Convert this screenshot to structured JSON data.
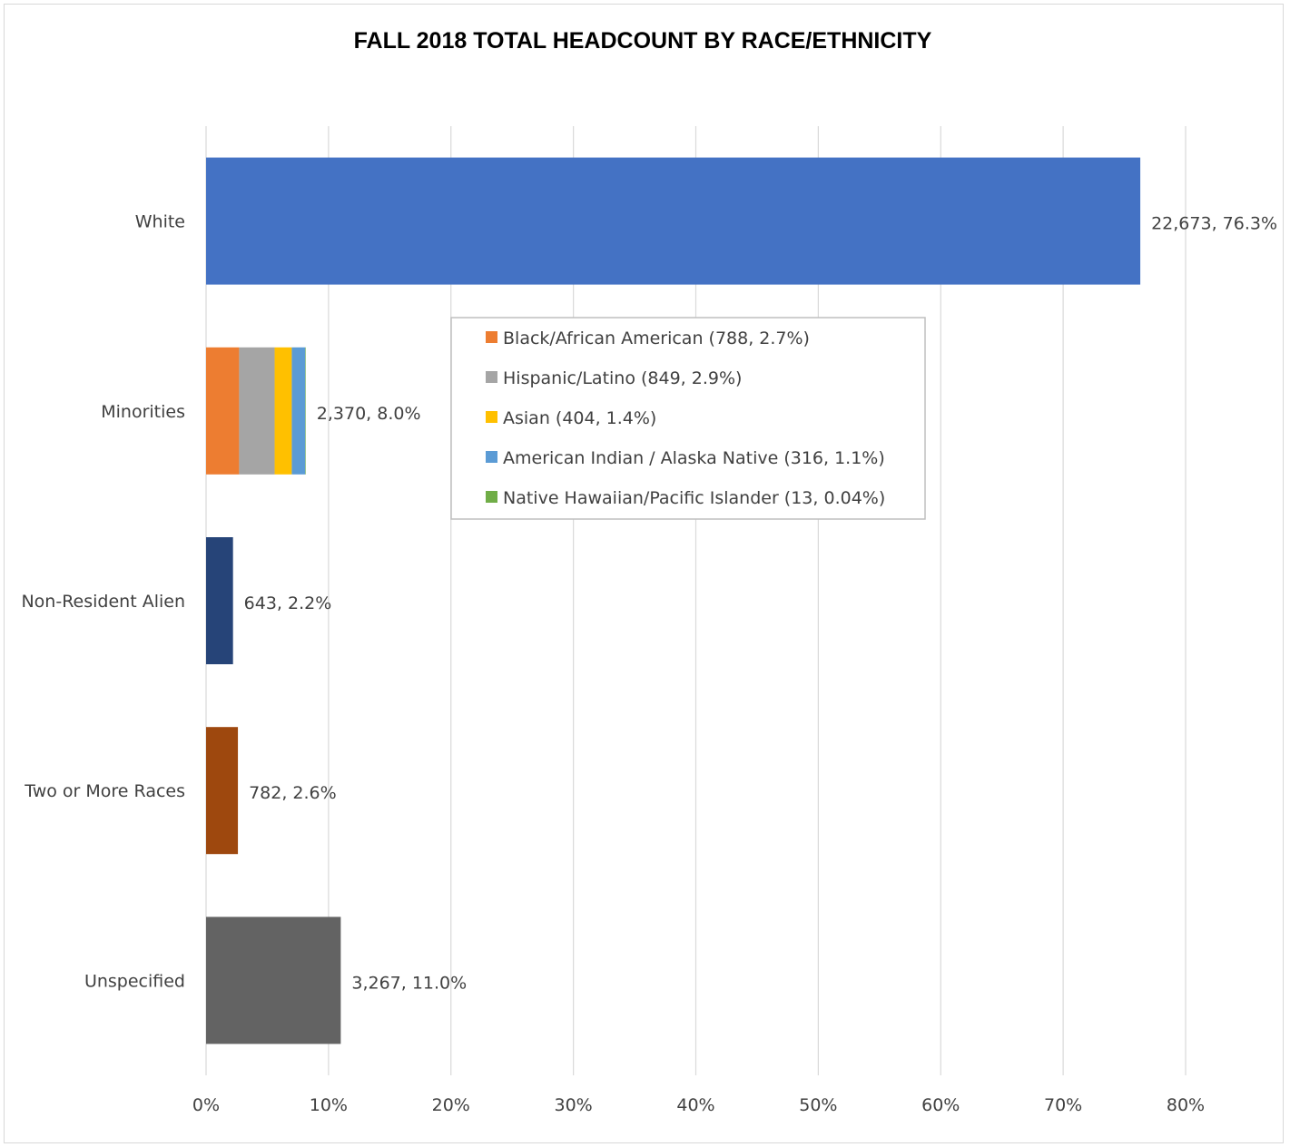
{
  "chart_data": {
    "type": "bar",
    "orientation": "horizontal",
    "stacked": true,
    "title": "FALL 2018 TOTAL HEADCOUNT BY RACE/ETHNICITY",
    "xlabel": "",
    "ylabel": "",
    "xlim": [
      0,
      80
    ],
    "x_ticks": [
      "0%",
      "10%",
      "20%",
      "30%",
      "40%",
      "50%",
      "60%",
      "70%",
      "80%"
    ],
    "grid": "vertical",
    "legend_position": "center",
    "categories": [
      "White",
      "Minorities",
      "Non-Resident Alien",
      "Two or More Races",
      "Unspecified"
    ],
    "bars": [
      {
        "category": "White",
        "segments": [
          {
            "value": 76.3,
            "color": "#4472C4"
          }
        ],
        "label": "22,673, 76.3%"
      },
      {
        "category": "Minorities",
        "segments": [
          {
            "series": "Black/African American",
            "value": 2.7,
            "color": "#ED7D31"
          },
          {
            "series": "Hispanic/Latino",
            "value": 2.9,
            "color": "#A5A5A5"
          },
          {
            "series": "Asian",
            "value": 1.4,
            "color": "#FFC000"
          },
          {
            "series": "American Indian / Alaska Native",
            "value": 1.1,
            "color": "#5B9BD5"
          },
          {
            "series": "Native Hawaiian/Pacific Islander",
            "value": 0.04,
            "color": "#70AD47"
          }
        ],
        "label": "2,370, 8.0%"
      },
      {
        "category": "Non-Resident Alien",
        "segments": [
          {
            "value": 2.2,
            "color": "#264478"
          }
        ],
        "label": "643, 2.2%"
      },
      {
        "category": "Two or More Races",
        "segments": [
          {
            "value": 2.6,
            "color": "#9E480E"
          }
        ],
        "label": "782, 2.6%"
      },
      {
        "category": "Unspecified",
        "segments": [
          {
            "value": 11.0,
            "color": "#636363"
          }
        ],
        "label": "3,267, 11.0%"
      }
    ],
    "legend": [
      {
        "label": "Black/African American (788, 2.7%)",
        "color": "#ED7D31"
      },
      {
        "label": "Hispanic/Latino (849, 2.9%)",
        "color": "#A5A5A5"
      },
      {
        "label": "Asian (404, 1.4%)",
        "color": "#FFC000"
      },
      {
        "label": "American Indian / Alaska Native (316, 1.1%)",
        "color": "#5B9BD5"
      },
      {
        "label": "Native Hawaiian/Pacific Islander (13, 0.04%)",
        "color": "#70AD47"
      }
    ]
  }
}
